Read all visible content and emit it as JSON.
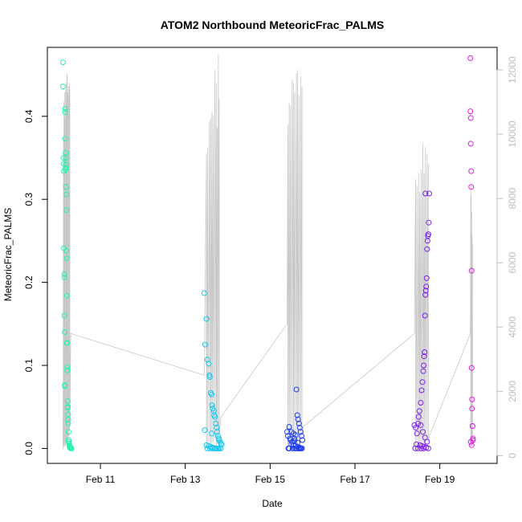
{
  "chart_data": {
    "type": "scatter",
    "title": "ATOM2 Northbound MeteoricFrac_PALMS",
    "xlabel": "Date",
    "ylabel": "MeteoricFrac_PALMS",
    "x_unit": "days since Feb 10 00:00",
    "xlim": [
      -0.25,
      10.35
    ],
    "ylim": [
      -0.018,
      0.483
    ],
    "x_ticks": [
      {
        "value": 1,
        "label": "Feb 11"
      },
      {
        "value": 3,
        "label": "Feb 13"
      },
      {
        "value": 5,
        "label": "Feb 15"
      },
      {
        "value": 7,
        "label": "Feb 17"
      },
      {
        "value": 9,
        "label": "Feb 19"
      }
    ],
    "y_ticks": [
      {
        "value": 0.0,
        "label": "0.0"
      },
      {
        "value": 0.1,
        "label": "0.1"
      },
      {
        "value": 0.2,
        "label": "0.2"
      },
      {
        "value": 0.3,
        "label": "0.3"
      },
      {
        "value": 0.4,
        "label": "0.4"
      }
    ],
    "y2lim": [
      -240,
      12700
    ],
    "y2_ticks": [
      {
        "value": 0,
        "label": "0"
      },
      {
        "value": 2000,
        "label": "2000"
      },
      {
        "value": 4000,
        "label": "4000"
      },
      {
        "value": 6000,
        "label": "6000"
      },
      {
        "value": 8000,
        "label": "8000"
      },
      {
        "value": 10000,
        "label": "10000"
      },
      {
        "value": 12000,
        "label": "12000"
      }
    ],
    "series": [
      {
        "color": "#20f5b0",
        "x": [
          0.12,
          0.12,
          0.13,
          0.13,
          0.14,
          0.14,
          0.15,
          0.15,
          0.15,
          0.16,
          0.16,
          0.16,
          0.17,
          0.17,
          0.17,
          0.18,
          0.18,
          0.18,
          0.19,
          0.19,
          0.19,
          0.2,
          0.2,
          0.2,
          0.21,
          0.21,
          0.21,
          0.22,
          0.22,
          0.22,
          0.23,
          0.23,
          0.23,
          0.24,
          0.24,
          0.24,
          0.25,
          0.25,
          0.26,
          0.26,
          0.27,
          0.27,
          0.28,
          0.28,
          0.29,
          0.3,
          0.31,
          0.32
        ],
        "y": [
          0.465,
          0.436,
          0.35,
          0.343,
          0.334,
          0.241,
          0.21,
          0.206,
          0.16,
          0.14,
          0.075,
          0.076,
          0.409,
          0.405,
          0.373,
          0.356,
          0.338,
          0.336,
          0.35,
          0.342,
          0.315,
          0.306,
          0.287,
          0.238,
          0.229,
          0.184,
          0.127,
          0.127,
          0.098,
          0.094,
          0.057,
          0.05,
          0.049,
          0.041,
          0.035,
          0.03,
          0.02,
          0.01,
          0.008,
          0.006,
          0.004,
          0.003,
          0.002,
          0.001,
          0.001,
          0.0,
          0.0,
          0.0
        ]
      },
      {
        "color": "#12c8f0",
        "x": [
          3.45,
          3.47,
          3.5,
          3.52,
          3.55,
          3.57,
          3.58,
          3.6,
          3.62,
          3.63,
          3.65,
          3.67,
          3.68,
          3.7,
          3.72,
          3.74,
          3.75,
          3.77,
          3.79,
          3.8,
          3.82,
          3.84,
          3.86,
          3.5,
          3.55,
          3.6,
          3.65,
          3.7,
          3.75,
          3.8,
          3.52,
          3.58,
          3.64,
          3.72,
          3.78,
          3.84,
          3.46,
          3.62
        ],
        "y": [
          0.187,
          0.125,
          0.156,
          0.107,
          0.102,
          0.088,
          0.086,
          0.067,
          0.065,
          0.052,
          0.048,
          0.045,
          0.04,
          0.038,
          0.03,
          0.025,
          0.02,
          0.015,
          0.012,
          0.01,
          0.008,
          0.006,
          0.005,
          0.004,
          0.003,
          0.002,
          0.001,
          0.0,
          0.0,
          0.0,
          0.0,
          0.0,
          0.0,
          0.0,
          0.0,
          0.0,
          0.022,
          0.018
        ]
      },
      {
        "color": "#1f3df0",
        "x": [
          5.4,
          5.42,
          5.45,
          5.48,
          5.5,
          5.52,
          5.55,
          5.57,
          5.6,
          5.62,
          5.64,
          5.66,
          5.68,
          5.7,
          5.72,
          5.74,
          5.76,
          5.5,
          5.55,
          5.6,
          5.65,
          5.7,
          5.45,
          5.58,
          5.63,
          5.68,
          5.73,
          5.43,
          5.53,
          5.61,
          5.67,
          5.71,
          5.75,
          5.47,
          5.57,
          5.65
        ],
        "y": [
          0.02,
          0.015,
          0.026,
          0.01,
          0.02,
          0.008,
          0.018,
          0.012,
          0.016,
          0.071,
          0.04,
          0.035,
          0.03,
          0.025,
          0.02,
          0.015,
          0.01,
          0.005,
          0.004,
          0.003,
          0.002,
          0.001,
          0.0,
          0.0,
          0.0,
          0.0,
          0.0,
          0.0,
          0.0,
          0.0,
          0.0,
          0.0,
          0.0,
          0.012,
          0.009,
          0.007
        ]
      },
      {
        "color": "#7a1ff0",
        "x": [
          8.4,
          8.43,
          8.46,
          8.49,
          8.52,
          8.55,
          8.57,
          8.59,
          8.61,
          8.62,
          8.63,
          8.64,
          8.65,
          8.66,
          8.67,
          8.68,
          8.69,
          8.7,
          8.71,
          8.72,
          8.73,
          8.74,
          8.75,
          8.5,
          8.55,
          8.6,
          8.65,
          8.7,
          8.45,
          8.53,
          8.58,
          8.63,
          8.68,
          8.73,
          8.42,
          8.48,
          8.56,
          8.62,
          8.66
        ],
        "y": [
          0.028,
          0.025,
          0.018,
          0.03,
          0.045,
          0.055,
          0.07,
          0.08,
          0.093,
          0.1,
          0.111,
          0.116,
          0.16,
          0.185,
          0.19,
          0.195,
          0.205,
          0.24,
          0.25,
          0.256,
          0.258,
          0.272,
          0.307,
          0.038,
          0.028,
          0.02,
          0.013,
          0.008,
          0.005,
          0.004,
          0.003,
          0.002,
          0.001,
          0.0,
          0.0,
          0.0,
          0.0,
          0.0,
          0.307
        ]
      },
      {
        "color": "#e020e0",
        "x": [
          9.72,
          9.72,
          9.73,
          9.73,
          9.74,
          9.74,
          9.75,
          9.75,
          9.76,
          9.76,
          9.77,
          9.77,
          9.78,
          9.78,
          9.73,
          9.75
        ],
        "y": [
          0.47,
          0.406,
          0.398,
          0.367,
          0.334,
          0.315,
          0.214,
          0.097,
          0.059,
          0.048,
          0.027,
          0.027,
          0.012,
          0.01,
          0.008,
          0.004
        ]
      }
    ],
    "secondary_series": {
      "color": "#c8c8c8",
      "segments": [
        {
          "x": [
            0.12,
            0.13,
            0.13,
            0.14,
            0.14,
            0.15,
            0.15,
            0.16,
            0.16,
            0.17,
            0.17,
            0.18,
            0.18,
            0.19,
            0.19,
            0.2,
            0.2,
            0.21,
            0.21,
            0.22,
            0.22,
            0.23,
            0.23,
            0.24,
            0.24,
            0.25,
            0.25,
            0.26,
            0.26,
            0.27,
            0.27,
            0.28,
            0.28,
            0.3,
            3.45
          ],
          "y": [
            200,
            9800,
            300,
            11000,
            300,
            10500,
            400,
            11300,
            300,
            10800,
            400,
            11400,
            300,
            11600,
            400,
            11000,
            500,
            11900,
            400,
            11800,
            500,
            11300,
            600,
            11200,
            500,
            11500,
            700,
            11100,
            600,
            11600,
            800,
            11400,
            900,
            3800,
            2500
          ]
        },
        {
          "x": [
            3.45,
            3.5,
            3.5,
            3.53,
            3.53,
            3.57,
            3.57,
            3.6,
            3.6,
            3.63,
            3.63,
            3.66,
            3.66,
            3.7,
            3.7,
            3.73,
            3.73,
            3.75,
            3.75,
            3.78,
            3.78,
            3.8,
            3.8,
            3.84,
            5.4
          ],
          "y": [
            2500,
            9400,
            300,
            9600,
            300,
            10400,
            400,
            10500,
            300,
            10700,
            400,
            10600,
            400,
            12000,
            500,
            11600,
            300,
            10200,
            400,
            12500,
            600,
            11100,
            700,
            1200,
            4100
          ]
        },
        {
          "x": [
            5.4,
            5.42,
            5.42,
            5.45,
            5.45,
            5.48,
            5.48,
            5.52,
            5.52,
            5.55,
            5.55,
            5.58,
            5.58,
            5.62,
            5.62,
            5.65,
            5.65,
            5.68,
            5.68,
            5.72,
            5.72,
            5.75,
            5.75,
            5.78,
            8.4
          ],
          "y": [
            4100,
            10300,
            200,
            11000,
            300,
            10900,
            300,
            11700,
            200,
            11600,
            300,
            11300,
            400,
            11900,
            300,
            12000,
            300,
            11200,
            400,
            11800,
            500,
            11500,
            600,
            900,
            3800
          ]
        },
        {
          "x": [
            8.4,
            8.43,
            8.43,
            8.46,
            8.46,
            8.5,
            8.5,
            8.53,
            8.53,
            8.56,
            8.56,
            8.6,
            8.6,
            8.63,
            8.63,
            8.66,
            8.66,
            8.7,
            8.7,
            8.73,
            8.73,
            8.75,
            9.72
          ],
          "y": [
            3800,
            8600,
            300,
            8400,
            400,
            8800,
            300,
            8200,
            400,
            8900,
            300,
            9700,
            400,
            8800,
            300,
            9600,
            300,
            9400,
            400,
            9100,
            500,
            600,
            3800
          ]
        },
        {
          "x": [
            9.72,
            9.73,
            9.73,
            9.74,
            9.74,
            9.75,
            9.75,
            9.76,
            9.76,
            9.77,
            9.77,
            9.78
          ],
          "y": [
            3800,
            8400,
            300,
            8100,
            400,
            7600,
            300,
            6900,
            400,
            6600,
            300,
            500
          ]
        }
      ]
    },
    "grid": false,
    "legend": "none"
  }
}
